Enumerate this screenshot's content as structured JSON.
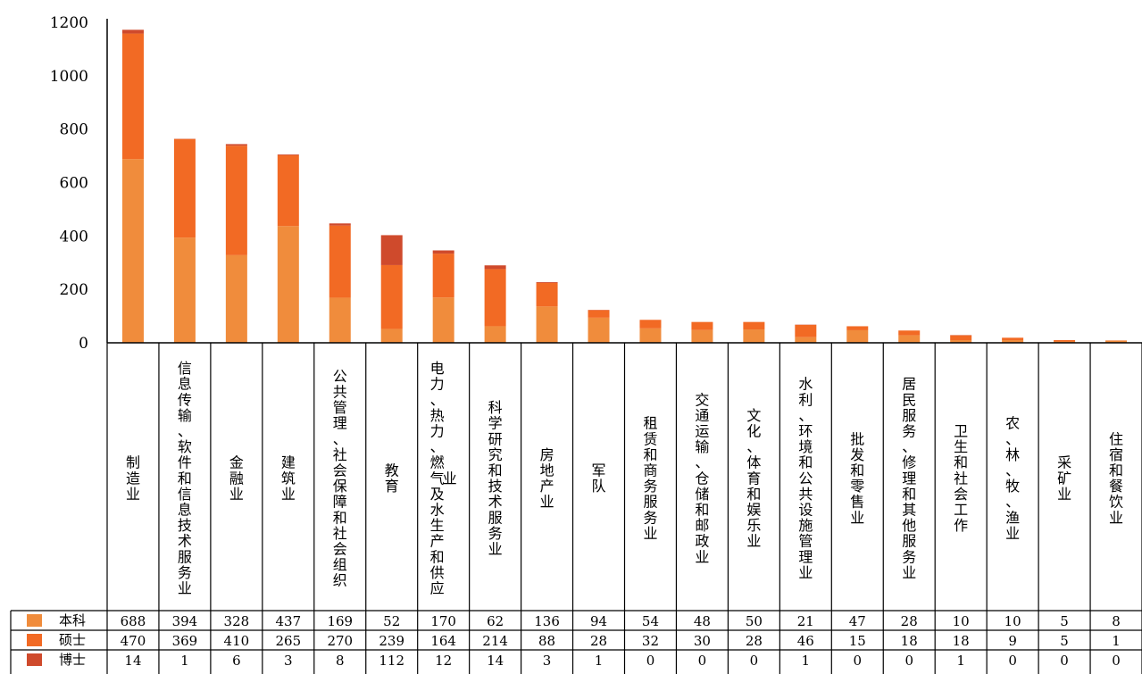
{
  "chart_data": {
    "type": "bar",
    "stacked": true,
    "categories": [
      "制造业",
      "信息传输、软件和信息技术服务业",
      "金融业",
      "建筑业",
      "公共管理、社会保障和社会组织",
      "教育",
      "电力、热力、燃气及水生产和供应业",
      "科学研究和技术服务业",
      "房地产业",
      "军队",
      "租赁和商务服务业",
      "交通运输、仓储和邮政业",
      "文化、体育和娱乐业",
      "水利、环境和公共设施管理业",
      "批发和零售业",
      "居民服务、修理和其他服务业",
      "卫生和社会工作",
      "农、林、牧、渔业",
      "采矿业",
      "住宿和餐饮业"
    ],
    "series": [
      {
        "name": "本科",
        "color": "#f08c3c",
        "values": [
          688,
          394,
          328,
          437,
          169,
          52,
          170,
          62,
          136,
          94,
          54,
          48,
          50,
          21,
          47,
          28,
          10,
          10,
          5,
          8
        ]
      },
      {
        "name": "硕士",
        "color": "#f26a24",
        "values": [
          470,
          369,
          410,
          265,
          270,
          239,
          164,
          214,
          88,
          28,
          32,
          30,
          28,
          46,
          15,
          18,
          18,
          9,
          5,
          1
        ]
      },
      {
        "name": "博士",
        "color": "#cf4a2c",
        "values": [
          14,
          1,
          6,
          3,
          8,
          112,
          12,
          14,
          3,
          1,
          0,
          0,
          0,
          1,
          0,
          0,
          1,
          0,
          0,
          0
        ]
      }
    ],
    "yticks": [
      "0",
      "200",
      "400",
      "600",
      "800",
      "1000",
      "1200"
    ],
    "ylim": [
      0,
      1200
    ],
    "title": "",
    "xlabel": "",
    "ylabel": "",
    "legend": "data-table-left",
    "grid": false
  }
}
